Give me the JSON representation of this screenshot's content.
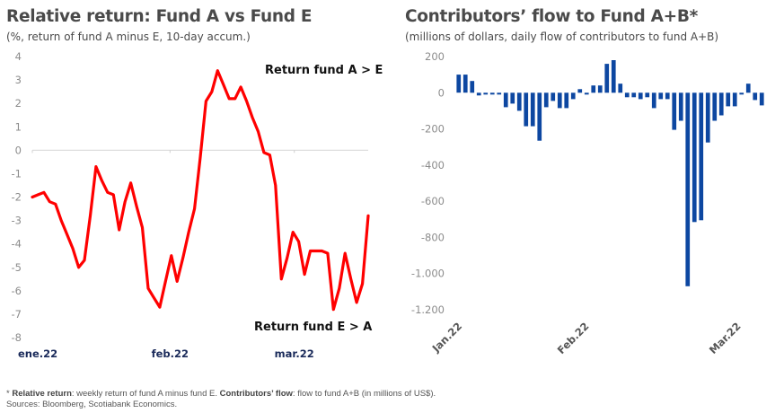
{
  "chart_data": [
    {
      "type": "line",
      "title": "Relative return: Fund A vs Fund E",
      "subtitle": "(%, return of fund A minus E, 10-day accum.)",
      "xlabel": "",
      "ylabel": "",
      "ylim": [
        -8,
        4
      ],
      "yticks": [
        "4",
        "3",
        "2",
        "1",
        "0",
        "-1",
        "-2",
        "-3",
        "-4",
        "-5",
        "-6",
        "-7",
        "-8"
      ],
      "ytick_values": [
        4,
        3,
        2,
        1,
        0,
        -1,
        -2,
        -3,
        -4,
        -5,
        -6,
        -7,
        -8
      ],
      "xticks": [
        "ene.22",
        "feb.22",
        "mar.22"
      ],
      "xtick_positions": [
        0,
        0.41,
        0.78
      ],
      "color": "#ff0000",
      "annotations": [
        "Return fund A > E",
        "Return fund E > A"
      ],
      "series": [
        {
          "name": "Relative return A - E",
          "values": [
            -2.0,
            -1.9,
            -1.8,
            -2.2,
            -2.3,
            -3.0,
            -3.6,
            -4.2,
            -5.0,
            -4.7,
            -2.8,
            -0.7,
            -1.3,
            -1.8,
            -1.9,
            -3.4,
            -2.2,
            -1.4,
            -2.4,
            -3.3,
            -5.9,
            -6.3,
            -6.7,
            -5.6,
            -4.5,
            -5.6,
            -4.6,
            -3.5,
            -2.5,
            -0.3,
            2.1,
            2.5,
            3.4,
            2.8,
            2.2,
            2.2,
            2.7,
            2.1,
            1.4,
            0.8,
            -0.1,
            -0.2,
            -1.5,
            -5.5,
            -4.6,
            -3.5,
            -3.9,
            -5.3,
            -4.3,
            -4.3,
            -4.3,
            -4.4,
            -6.8,
            -5.9,
            -4.4,
            -5.5,
            -6.5,
            -5.7,
            -2.8
          ]
        }
      ]
    },
    {
      "type": "bar",
      "title": "Contributors’ flow to Fund A+B*",
      "subtitle": "(millions of dollars, daily flow of contributors to fund A+B)",
      "xlabel": "",
      "ylabel": "",
      "ylim": [
        -1200,
        200
      ],
      "yticks": [
        "200",
        "0",
        "-200",
        "-400",
        "-600",
        "-800",
        "-1.000",
        "-1.200"
      ],
      "ytick_values": [
        200,
        0,
        -200,
        -400,
        -600,
        -800,
        -1000,
        -1200
      ],
      "xticks": [
        "Jan.22",
        "Feb.22",
        "Mar.22"
      ],
      "xtick_positions": [
        0,
        0.41,
        0.9
      ],
      "color": "#0d47a1",
      "series": [
        {
          "name": "Daily flow",
          "values": [
            100,
            100,
            65,
            -15,
            -5,
            -5,
            -5,
            -80,
            -60,
            -100,
            -185,
            -185,
            -265,
            -80,
            -45,
            -85,
            -85,
            -35,
            20,
            -10,
            40,
            40,
            160,
            180,
            50,
            -25,
            -25,
            -35,
            -25,
            -85,
            -35,
            -35,
            -205,
            -155,
            -1070,
            -715,
            -705,
            -275,
            -155,
            -125,
            -75,
            -75,
            -5,
            50,
            -40,
            -70
          ]
        }
      ]
    }
  ],
  "footnote": {
    "line1_prefix": "* ",
    "line1_bold_a": "Relative return",
    "line1_text_a": ": weekly return of fund A minus fund E. ",
    "line1_bold_b": "Contributors’ flow",
    "line1_text_b": ": flow to fund A+B (in millions of US$).",
    "line2": "Sources: Bloomberg, Scotiabank Economics."
  }
}
